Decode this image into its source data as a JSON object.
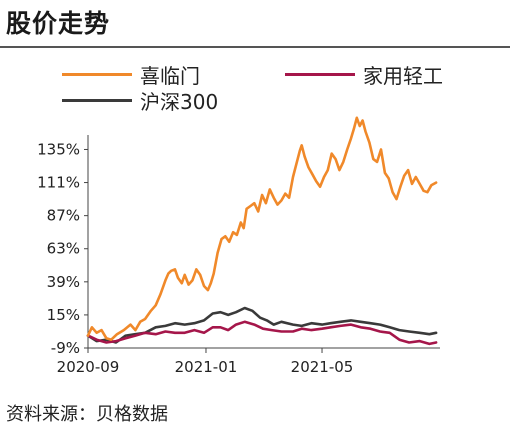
{
  "header": {
    "title": "股价走势"
  },
  "source": {
    "text": "资料来源：贝格数据"
  },
  "chart_data": {
    "type": "line",
    "title": "股价走势",
    "xlabel": "",
    "ylabel": "",
    "ylim": [
      -9,
      160
    ],
    "yticks": [
      -9,
      15,
      39,
      63,
      87,
      111,
      135
    ],
    "ytick_labels": [
      "-9%",
      "15%",
      "39%",
      "63%",
      "87%",
      "111%",
      "135%"
    ],
    "x_start": "2020-09-01",
    "x_end": "2021-08-31",
    "xticks": [
      "2020-09-01",
      "2021-01-01",
      "2021-05-01"
    ],
    "xtick_labels": [
      "2020-09",
      "2021-01",
      "2021-05"
    ],
    "legend_position": "top",
    "grid": false,
    "series": [
      {
        "name": "喜临门",
        "color": "#F0892A",
        "points": [
          [
            "2020-09-01",
            0
          ],
          [
            "2020-09-05",
            6
          ],
          [
            "2020-09-10",
            2
          ],
          [
            "2020-09-15",
            4
          ],
          [
            "2020-09-20",
            -2
          ],
          [
            "2020-09-25",
            -3
          ],
          [
            "2020-10-01",
            1
          ],
          [
            "2020-10-08",
            4
          ],
          [
            "2020-10-15",
            8
          ],
          [
            "2020-10-20",
            4
          ],
          [
            "2020-10-25",
            10
          ],
          [
            "2020-10-30",
            12
          ],
          [
            "2020-11-05",
            18
          ],
          [
            "2020-11-10",
            22
          ],
          [
            "2020-11-15",
            30
          ],
          [
            "2020-11-20",
            40
          ],
          [
            "2020-11-23",
            45
          ],
          [
            "2020-11-26",
            47
          ],
          [
            "2020-11-30",
            48
          ],
          [
            "2020-12-03",
            42
          ],
          [
            "2020-12-07",
            38
          ],
          [
            "2020-12-10",
            44
          ],
          [
            "2020-12-14",
            37
          ],
          [
            "2020-12-18",
            40
          ],
          [
            "2020-12-22",
            48
          ],
          [
            "2020-12-26",
            44
          ],
          [
            "2020-12-30",
            36
          ],
          [
            "2021-01-03",
            33
          ],
          [
            "2021-01-06",
            38
          ],
          [
            "2021-01-09",
            45
          ],
          [
            "2021-01-13",
            60
          ],
          [
            "2021-01-17",
            70
          ],
          [
            "2021-01-21",
            72
          ],
          [
            "2021-01-25",
            68
          ],
          [
            "2021-01-29",
            75
          ],
          [
            "2021-02-02",
            73
          ],
          [
            "2021-02-06",
            82
          ],
          [
            "2021-02-09",
            78
          ],
          [
            "2021-02-12",
            92
          ],
          [
            "2021-02-16",
            94
          ],
          [
            "2021-02-20",
            96
          ],
          [
            "2021-02-24",
            90
          ],
          [
            "2021-02-28",
            102
          ],
          [
            "2021-03-04",
            96
          ],
          [
            "2021-03-08",
            106
          ],
          [
            "2021-03-12",
            100
          ],
          [
            "2021-03-16",
            95
          ],
          [
            "2021-03-20",
            98
          ],
          [
            "2021-03-24",
            103
          ],
          [
            "2021-03-28",
            100
          ],
          [
            "2021-04-01",
            115
          ],
          [
            "2021-04-05",
            126
          ],
          [
            "2021-04-08",
            134
          ],
          [
            "2021-04-10",
            138
          ],
          [
            "2021-04-13",
            130
          ],
          [
            "2021-04-17",
            122
          ],
          [
            "2021-04-21",
            117
          ],
          [
            "2021-04-25",
            112
          ],
          [
            "2021-04-29",
            108
          ],
          [
            "2021-05-03",
            115
          ],
          [
            "2021-05-07",
            120
          ],
          [
            "2021-05-11",
            132
          ],
          [
            "2021-05-15",
            128
          ],
          [
            "2021-05-19",
            120
          ],
          [
            "2021-05-23",
            126
          ],
          [
            "2021-05-27",
            135
          ],
          [
            "2021-05-31",
            143
          ],
          [
            "2021-06-03",
            150
          ],
          [
            "2021-06-06",
            158
          ],
          [
            "2021-06-09",
            152
          ],
          [
            "2021-06-12",
            156
          ],
          [
            "2021-06-15",
            148
          ],
          [
            "2021-06-19",
            140
          ],
          [
            "2021-06-23",
            128
          ],
          [
            "2021-06-27",
            126
          ],
          [
            "2021-07-01",
            135
          ],
          [
            "2021-07-05",
            118
          ],
          [
            "2021-07-09",
            114
          ],
          [
            "2021-07-13",
            104
          ],
          [
            "2021-07-17",
            99
          ],
          [
            "2021-07-21",
            108
          ],
          [
            "2021-07-25",
            116
          ],
          [
            "2021-07-29",
            120
          ],
          [
            "2021-08-02",
            110
          ],
          [
            "2021-08-06",
            115
          ],
          [
            "2021-08-10",
            110
          ],
          [
            "2021-08-14",
            105
          ],
          [
            "2021-08-18",
            104
          ],
          [
            "2021-08-22",
            109
          ],
          [
            "2021-08-27",
            111
          ]
        ]
      },
      {
        "name": "家用轻工",
        "color": "#A5164A",
        "points": [
          [
            "2020-09-01",
            0
          ],
          [
            "2020-09-10",
            -3
          ],
          [
            "2020-09-20",
            -5
          ],
          [
            "2020-09-30",
            -4
          ],
          [
            "2020-10-10",
            -2
          ],
          [
            "2020-10-20",
            0
          ],
          [
            "2020-10-30",
            2
          ],
          [
            "2020-11-10",
            1
          ],
          [
            "2020-11-20",
            3
          ],
          [
            "2020-11-30",
            2
          ],
          [
            "2020-12-10",
            2
          ],
          [
            "2020-12-20",
            4
          ],
          [
            "2020-12-30",
            2
          ],
          [
            "2021-01-08",
            6
          ],
          [
            "2021-01-16",
            6
          ],
          [
            "2021-01-24",
            4
          ],
          [
            "2021-02-01",
            8
          ],
          [
            "2021-02-10",
            10
          ],
          [
            "2021-02-20",
            8
          ],
          [
            "2021-03-01",
            5
          ],
          [
            "2021-03-10",
            4
          ],
          [
            "2021-03-20",
            3
          ],
          [
            "2021-04-01",
            3
          ],
          [
            "2021-04-10",
            5
          ],
          [
            "2021-04-20",
            4
          ],
          [
            "2021-05-01",
            5
          ],
          [
            "2021-05-10",
            6
          ],
          [
            "2021-05-20",
            7
          ],
          [
            "2021-05-31",
            8
          ],
          [
            "2021-06-10",
            6
          ],
          [
            "2021-06-20",
            5
          ],
          [
            "2021-06-30",
            3
          ],
          [
            "2021-07-10",
            2
          ],
          [
            "2021-07-20",
            -3
          ],
          [
            "2021-07-30",
            -5
          ],
          [
            "2021-08-10",
            -4
          ],
          [
            "2021-08-20",
            -6
          ],
          [
            "2021-08-27",
            -5
          ]
        ]
      },
      {
        "name": "沪深300",
        "color": "#3A3A3A",
        "points": [
          [
            "2020-09-01",
            0
          ],
          [
            "2020-09-10",
            -4
          ],
          [
            "2020-09-20",
            -3
          ],
          [
            "2020-09-30",
            -5
          ],
          [
            "2020-10-10",
            0
          ],
          [
            "2020-10-20",
            1
          ],
          [
            "2020-10-30",
            2
          ],
          [
            "2020-11-10",
            6
          ],
          [
            "2020-11-20",
            7
          ],
          [
            "2020-11-30",
            9
          ],
          [
            "2020-12-10",
            8
          ],
          [
            "2020-12-20",
            9
          ],
          [
            "2020-12-30",
            11
          ],
          [
            "2021-01-08",
            16
          ],
          [
            "2021-01-16",
            17
          ],
          [
            "2021-01-24",
            15
          ],
          [
            "2021-02-01",
            17
          ],
          [
            "2021-02-10",
            20
          ],
          [
            "2021-02-18",
            18
          ],
          [
            "2021-02-26",
            13
          ],
          [
            "2021-03-05",
            11
          ],
          [
            "2021-03-12",
            8
          ],
          [
            "2021-03-20",
            10
          ],
          [
            "2021-04-01",
            8
          ],
          [
            "2021-04-10",
            7
          ],
          [
            "2021-04-20",
            9
          ],
          [
            "2021-05-01",
            8
          ],
          [
            "2021-05-10",
            9
          ],
          [
            "2021-05-20",
            10
          ],
          [
            "2021-05-31",
            11
          ],
          [
            "2021-06-10",
            10
          ],
          [
            "2021-06-20",
            9
          ],
          [
            "2021-06-30",
            8
          ],
          [
            "2021-07-10",
            6
          ],
          [
            "2021-07-20",
            4
          ],
          [
            "2021-07-30",
            3
          ],
          [
            "2021-08-10",
            2
          ],
          [
            "2021-08-20",
            1
          ],
          [
            "2021-08-27",
            2
          ]
        ]
      }
    ]
  }
}
